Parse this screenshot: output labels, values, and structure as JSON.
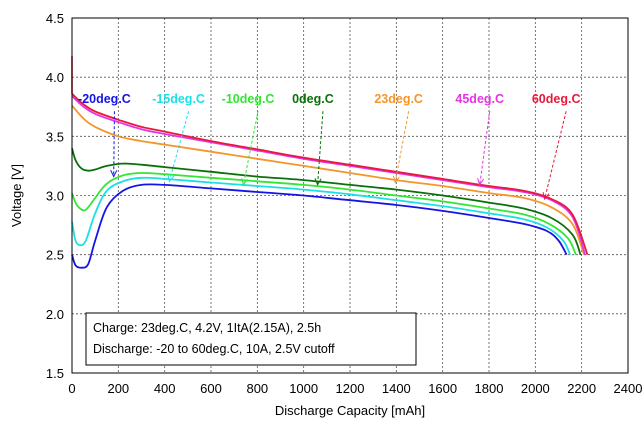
{
  "chart_data": {
    "type": "line",
    "title": "",
    "xlabel": "Discharge Capacity [mAh]",
    "ylabel": "Voltage [V]",
    "xlim": [
      0,
      2400
    ],
    "ylim": [
      1.5,
      4.5
    ],
    "xticks": [
      0,
      200,
      400,
      600,
      800,
      1000,
      1200,
      1400,
      1600,
      1800,
      2000,
      2200,
      2400
    ],
    "yticks": [
      1.5,
      2.0,
      2.5,
      3.0,
      3.5,
      4.0,
      4.5
    ],
    "grid": true,
    "legend": "inline labels with dashed arrow leaders",
    "series": [
      {
        "name": "-20deg.C",
        "color": "#1414e6",
        "points": [
          [
            0,
            2.5
          ],
          [
            15,
            2.41
          ],
          [
            40,
            2.39
          ],
          [
            70,
            2.42
          ],
          [
            100,
            2.62
          ],
          [
            150,
            2.9
          ],
          [
            220,
            3.04
          ],
          [
            300,
            3.09
          ],
          [
            400,
            3.09
          ],
          [
            600,
            3.06
          ],
          [
            800,
            3.03
          ],
          [
            1000,
            3.0
          ],
          [
            1200,
            2.96
          ],
          [
            1400,
            2.92
          ],
          [
            1600,
            2.87
          ],
          [
            1800,
            2.81
          ],
          [
            1950,
            2.76
          ],
          [
            2050,
            2.7
          ],
          [
            2100,
            2.62
          ],
          [
            2135,
            2.5
          ]
        ],
        "label_pos": [
          140,
          3.78
        ],
        "arrow_tip": [
          180,
          3.16
        ]
      },
      {
        "name": "-15deg.C",
        "color": "#1ae0e6",
        "points": [
          [
            0,
            2.78
          ],
          [
            15,
            2.62
          ],
          [
            35,
            2.58
          ],
          [
            60,
            2.62
          ],
          [
            100,
            2.85
          ],
          [
            150,
            3.04
          ],
          [
            220,
            3.12
          ],
          [
            300,
            3.15
          ],
          [
            400,
            3.14
          ],
          [
            600,
            3.11
          ],
          [
            800,
            3.08
          ],
          [
            1000,
            3.05
          ],
          [
            1200,
            3.01
          ],
          [
            1400,
            2.96
          ],
          [
            1600,
            2.91
          ],
          [
            1800,
            2.85
          ],
          [
            1950,
            2.8
          ],
          [
            2050,
            2.73
          ],
          [
            2120,
            2.62
          ],
          [
            2150,
            2.5
          ]
        ],
        "label_pos": [
          460,
          3.78
        ],
        "arrow_tip": [
          420,
          3.12
        ]
      },
      {
        "name": "-10deg.C",
        "color": "#33e633",
        "points": [
          [
            0,
            3.02
          ],
          [
            15,
            2.94
          ],
          [
            35,
            2.89
          ],
          [
            60,
            2.88
          ],
          [
            100,
            2.98
          ],
          [
            150,
            3.1
          ],
          [
            220,
            3.17
          ],
          [
            300,
            3.19
          ],
          [
            400,
            3.18
          ],
          [
            600,
            3.15
          ],
          [
            800,
            3.12
          ],
          [
            1000,
            3.09
          ],
          [
            1200,
            3.05
          ],
          [
            1400,
            3.0
          ],
          [
            1600,
            2.95
          ],
          [
            1800,
            2.89
          ],
          [
            1950,
            2.84
          ],
          [
            2060,
            2.76
          ],
          [
            2140,
            2.64
          ],
          [
            2175,
            2.5
          ]
        ],
        "label_pos": [
          760,
          3.78
        ],
        "arrow_tip": [
          740,
          3.09
        ]
      },
      {
        "name": "0deg.C",
        "color": "#0a700a",
        "points": [
          [
            0,
            3.4
          ],
          [
            15,
            3.3
          ],
          [
            40,
            3.23
          ],
          [
            70,
            3.21
          ],
          [
            100,
            3.22
          ],
          [
            150,
            3.25
          ],
          [
            220,
            3.27
          ],
          [
            300,
            3.26
          ],
          [
            400,
            3.24
          ],
          [
            600,
            3.2
          ],
          [
            800,
            3.16
          ],
          [
            1000,
            3.13
          ],
          [
            1200,
            3.09
          ],
          [
            1400,
            3.05
          ],
          [
            1600,
            3.0
          ],
          [
            1800,
            2.94
          ],
          [
            1950,
            2.89
          ],
          [
            2070,
            2.81
          ],
          [
            2160,
            2.67
          ],
          [
            2195,
            2.5
          ]
        ],
        "label_pos": [
          1040,
          3.78
        ],
        "arrow_tip": [
          1060,
          3.09
        ]
      },
      {
        "name": "23deg.C",
        "color": "#f5962a",
        "points": [
          [
            0,
            3.76
          ],
          [
            50,
            3.65
          ],
          [
            100,
            3.58
          ],
          [
            200,
            3.5
          ],
          [
            300,
            3.46
          ],
          [
            400,
            3.43
          ],
          [
            600,
            3.37
          ],
          [
            800,
            3.31
          ],
          [
            1000,
            3.25
          ],
          [
            1200,
            3.19
          ],
          [
            1400,
            3.13
          ],
          [
            1600,
            3.08
          ],
          [
            1800,
            3.02
          ],
          [
            1950,
            2.98
          ],
          [
            2070,
            2.9
          ],
          [
            2160,
            2.76
          ],
          [
            2210,
            2.5
          ]
        ],
        "label_pos": [
          1410,
          3.78
        ],
        "arrow_tip": [
          1395,
          3.11
        ]
      },
      {
        "name": "45deg.C",
        "color": "#e633e6",
        "points": [
          [
            0,
            3.84
          ],
          [
            50,
            3.75
          ],
          [
            100,
            3.69
          ],
          [
            200,
            3.62
          ],
          [
            300,
            3.56
          ],
          [
            400,
            3.52
          ],
          [
            600,
            3.45
          ],
          [
            800,
            3.38
          ],
          [
            1000,
            3.31
          ],
          [
            1200,
            3.25
          ],
          [
            1400,
            3.19
          ],
          [
            1600,
            3.13
          ],
          [
            1800,
            3.07
          ],
          [
            1950,
            3.03
          ],
          [
            2070,
            2.96
          ],
          [
            2160,
            2.82
          ],
          [
            2215,
            2.5
          ]
        ],
        "label_pos": [
          1760,
          3.78
        ],
        "arrow_tip": [
          1760,
          3.09
        ]
      },
      {
        "name": "60deg.C",
        "color": "#e61a3c",
        "points": [
          [
            0,
            3.86
          ],
          [
            50,
            3.77
          ],
          [
            100,
            3.71
          ],
          [
            200,
            3.64
          ],
          [
            300,
            3.58
          ],
          [
            400,
            3.54
          ],
          [
            600,
            3.46
          ],
          [
            800,
            3.39
          ],
          [
            1000,
            3.32
          ],
          [
            1200,
            3.26
          ],
          [
            1400,
            3.2
          ],
          [
            1600,
            3.14
          ],
          [
            1800,
            3.08
          ],
          [
            1950,
            3.04
          ],
          [
            2070,
            2.97
          ],
          [
            2160,
            2.84
          ],
          [
            2225,
            2.5
          ]
        ],
        "label_pos": [
          2090,
          3.78
        ],
        "arrow_tip": [
          2040,
          2.97
        ]
      }
    ],
    "annotation": {
      "lines": [
        "Charge: 23deg.C, 4.2V, 1ItA(2.15A), 2.5h",
        "Discharge: -20 to 60deg.C, 10A, 2.5V cutoff"
      ]
    }
  }
}
